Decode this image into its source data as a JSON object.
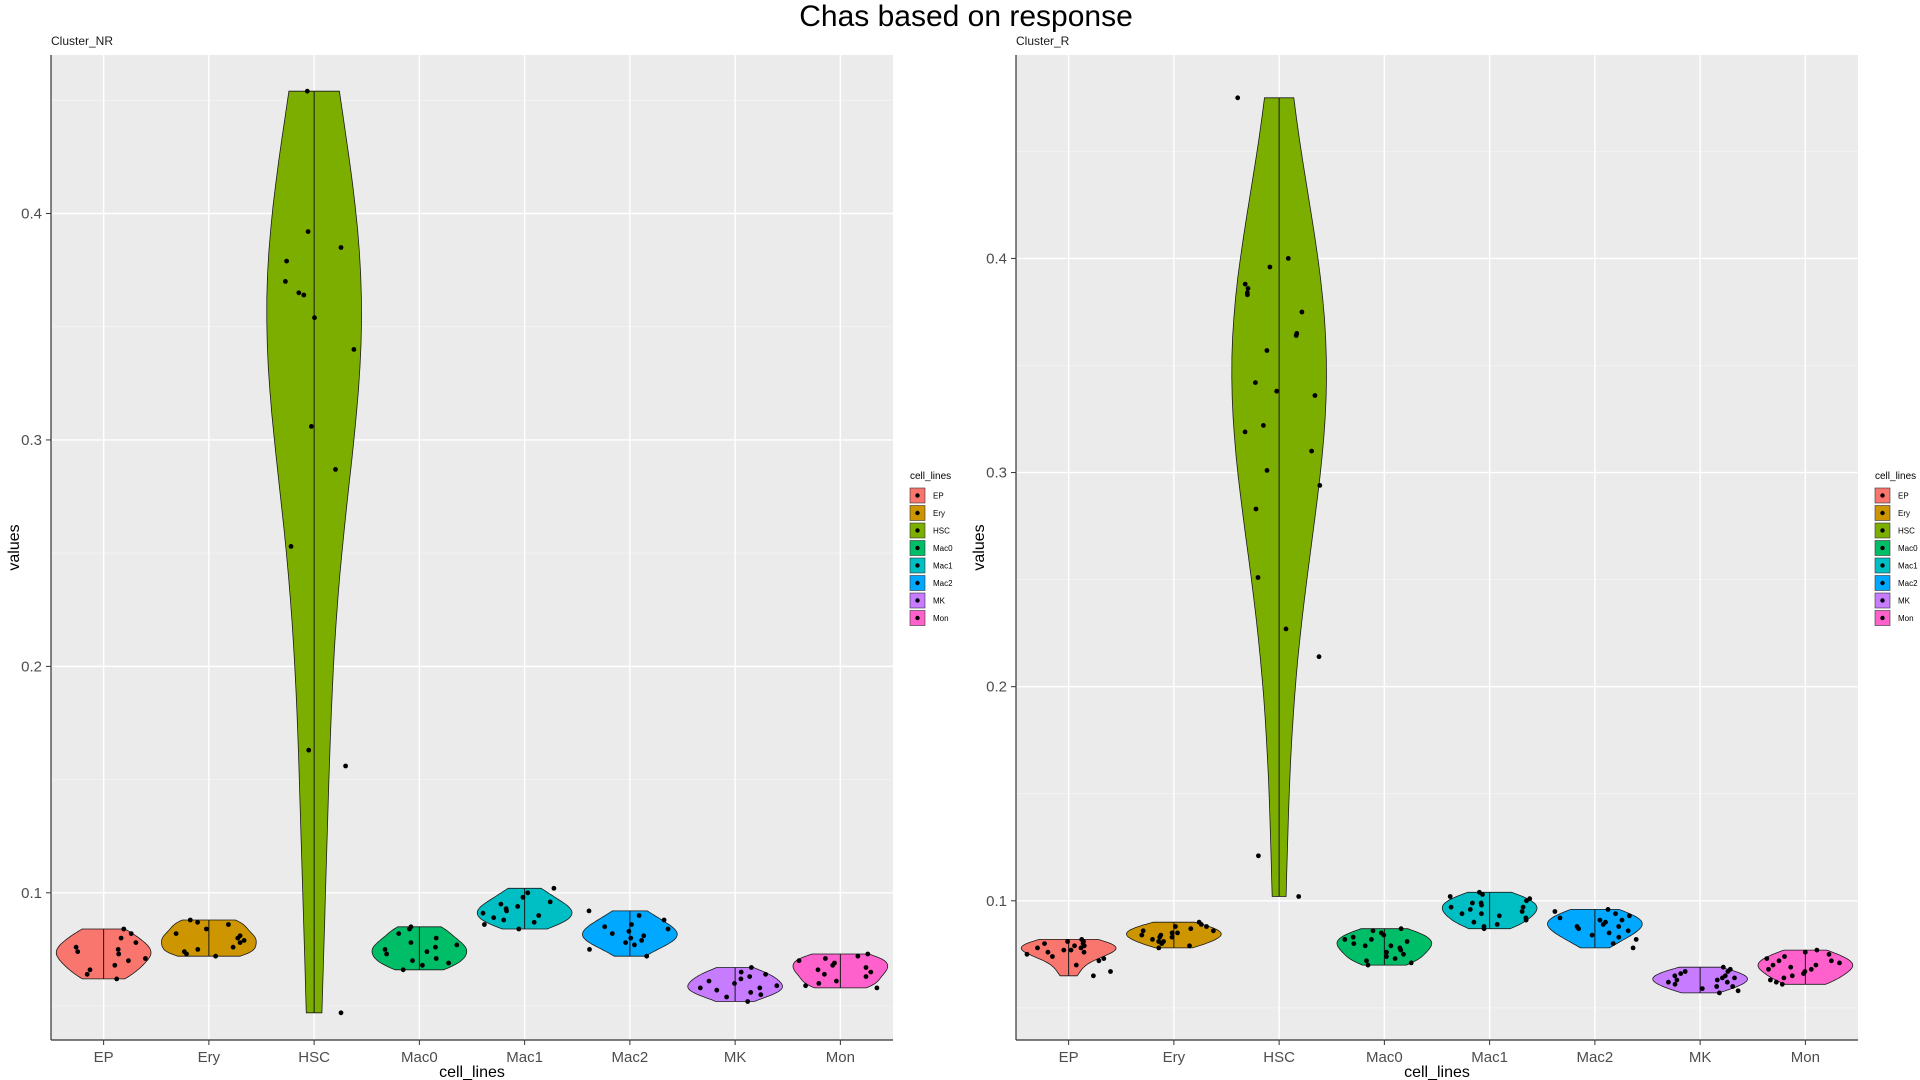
{
  "title": "Chas based on response",
  "legend_title": "cell_lines",
  "colors": {
    "EP": "#F8766D",
    "Ery": "#CD9600",
    "HSC": "#7CAE00",
    "Mac0": "#00BE67",
    "Mac1": "#00BFC4",
    "Mac2": "#00A9FF",
    "MK": "#C77CFF",
    "Mon": "#FF61CC"
  },
  "chart_data": [
    {
      "type": "violin",
      "facet": "Cluster_NR",
      "xlabel": "cell_lines",
      "ylabel": "values",
      "categories": [
        "EP",
        "Ery",
        "HSC",
        "Mac0",
        "Mac1",
        "Mac2",
        "MK",
        "Mon"
      ],
      "ylim": [
        0.035,
        0.47
      ],
      "yticks": [
        "0.1",
        "0.2",
        "0.3",
        "0.4"
      ],
      "legend": "right",
      "grid": true,
      "series": [
        {
          "name": "EP",
          "range": [
            0.062,
            0.084
          ],
          "points": [
            0.062,
            0.064,
            0.068,
            0.071,
            0.073,
            0.075,
            0.076,
            0.078,
            0.08,
            0.082,
            0.084,
            0.066,
            0.07,
            0.074
          ]
        },
        {
          "name": "Ery",
          "range": [
            0.072,
            0.088
          ],
          "points": [
            0.072,
            0.073,
            0.074,
            0.076,
            0.078,
            0.08,
            0.082,
            0.084,
            0.086,
            0.087,
            0.088,
            0.075,
            0.079,
            0.081
          ]
        },
        {
          "name": "HSC",
          "range": [
            0.047,
            0.454
          ],
          "points": [
            0.454,
            0.392,
            0.385,
            0.379,
            0.37,
            0.365,
            0.364,
            0.354,
            0.34,
            0.306,
            0.287,
            0.253,
            0.163,
            0.156,
            0.047
          ]
        },
        {
          "name": "Mac0",
          "range": [
            0.066,
            0.085
          ],
          "points": [
            0.066,
            0.068,
            0.069,
            0.071,
            0.073,
            0.074,
            0.075,
            0.076,
            0.078,
            0.08,
            0.082,
            0.084,
            0.085,
            0.07,
            0.077
          ]
        },
        {
          "name": "Mac1",
          "range": [
            0.084,
            0.102
          ],
          "points": [
            0.084,
            0.086,
            0.088,
            0.089,
            0.09,
            0.091,
            0.092,
            0.093,
            0.094,
            0.095,
            0.096,
            0.098,
            0.1,
            0.102,
            0.087
          ]
        },
        {
          "name": "Mac2",
          "range": [
            0.072,
            0.092
          ],
          "points": [
            0.072,
            0.075,
            0.077,
            0.078,
            0.08,
            0.081,
            0.082,
            0.083,
            0.084,
            0.085,
            0.086,
            0.088,
            0.09,
            0.092,
            0.079
          ]
        },
        {
          "name": "MK",
          "range": [
            0.052,
            0.067
          ],
          "points": [
            0.052,
            0.054,
            0.055,
            0.056,
            0.057,
            0.058,
            0.059,
            0.06,
            0.061,
            0.062,
            0.063,
            0.064,
            0.065,
            0.067,
            0.058
          ]
        },
        {
          "name": "Mon",
          "range": [
            0.058,
            0.073
          ],
          "points": [
            0.058,
            0.059,
            0.06,
            0.061,
            0.063,
            0.064,
            0.065,
            0.066,
            0.067,
            0.068,
            0.069,
            0.07,
            0.071,
            0.072,
            0.073
          ]
        }
      ]
    },
    {
      "type": "violin",
      "facet": "Cluster_R",
      "xlabel": "cell_lines",
      "ylabel": "values",
      "categories": [
        "EP",
        "Ery",
        "HSC",
        "Mac0",
        "Mac1",
        "Mac2",
        "MK",
        "Mon"
      ],
      "ylim": [
        0.035,
        0.495
      ],
      "yticks": [
        "0.1",
        "0.2",
        "0.3",
        "0.4"
      ],
      "legend": "right",
      "grid": true,
      "series": [
        {
          "name": "EP",
          "range": [
            0.065,
            0.082
          ],
          "points": [
            0.065,
            0.067,
            0.07,
            0.072,
            0.074,
            0.075,
            0.076,
            0.077,
            0.078,
            0.079,
            0.08,
            0.081,
            0.082,
            0.073,
            0.076,
            0.078,
            0.079,
            0.08,
            0.081,
            0.077
          ]
        },
        {
          "name": "Ery",
          "range": [
            0.078,
            0.09
          ],
          "points": [
            0.078,
            0.079,
            0.08,
            0.081,
            0.082,
            0.083,
            0.084,
            0.085,
            0.086,
            0.087,
            0.088,
            0.089,
            0.09,
            0.081,
            0.083,
            0.085,
            0.086,
            0.088,
            0.084
          ]
        },
        {
          "name": "HSC",
          "range": [
            0.102,
            0.475
          ],
          "points": [
            0.475,
            0.4,
            0.396,
            0.388,
            0.386,
            0.384,
            0.383,
            0.375,
            0.365,
            0.364,
            0.357,
            0.342,
            0.338,
            0.336,
            0.322,
            0.319,
            0.31,
            0.301,
            0.294,
            0.283,
            0.251,
            0.227,
            0.214,
            0.121,
            0.102
          ]
        },
        {
          "name": "Mac0",
          "range": [
            0.07,
            0.087
          ],
          "points": [
            0.07,
            0.071,
            0.072,
            0.074,
            0.075,
            0.076,
            0.077,
            0.078,
            0.079,
            0.08,
            0.081,
            0.082,
            0.083,
            0.084,
            0.085,
            0.086,
            0.087,
            0.073,
            0.079,
            0.082
          ]
        },
        {
          "name": "Mac1",
          "range": [
            0.087,
            0.104
          ],
          "points": [
            0.087,
            0.088,
            0.089,
            0.09,
            0.091,
            0.092,
            0.093,
            0.094,
            0.095,
            0.096,
            0.097,
            0.098,
            0.099,
            0.1,
            0.101,
            0.102,
            0.103,
            0.104,
            0.094,
            0.097,
            0.099
          ]
        },
        {
          "name": "Mac2",
          "range": [
            0.078,
            0.096
          ],
          "points": [
            0.078,
            0.08,
            0.082,
            0.083,
            0.084,
            0.085,
            0.086,
            0.087,
            0.088,
            0.089,
            0.09,
            0.091,
            0.092,
            0.093,
            0.094,
            0.095,
            0.096,
            0.088,
            0.091
          ]
        },
        {
          "name": "MK",
          "range": [
            0.057,
            0.069
          ],
          "points": [
            0.057,
            0.058,
            0.059,
            0.06,
            0.061,
            0.062,
            0.063,
            0.064,
            0.065,
            0.066,
            0.067,
            0.068,
            0.069,
            0.06,
            0.063,
            0.065,
            0.067,
            0.062,
            0.064
          ]
        },
        {
          "name": "Mon",
          "range": [
            0.061,
            0.077
          ],
          "points": [
            0.061,
            0.062,
            0.063,
            0.064,
            0.065,
            0.066,
            0.067,
            0.068,
            0.069,
            0.07,
            0.071,
            0.072,
            0.073,
            0.074,
            0.075,
            0.076,
            0.077,
            0.068,
            0.07,
            0.072
          ]
        }
      ]
    }
  ]
}
